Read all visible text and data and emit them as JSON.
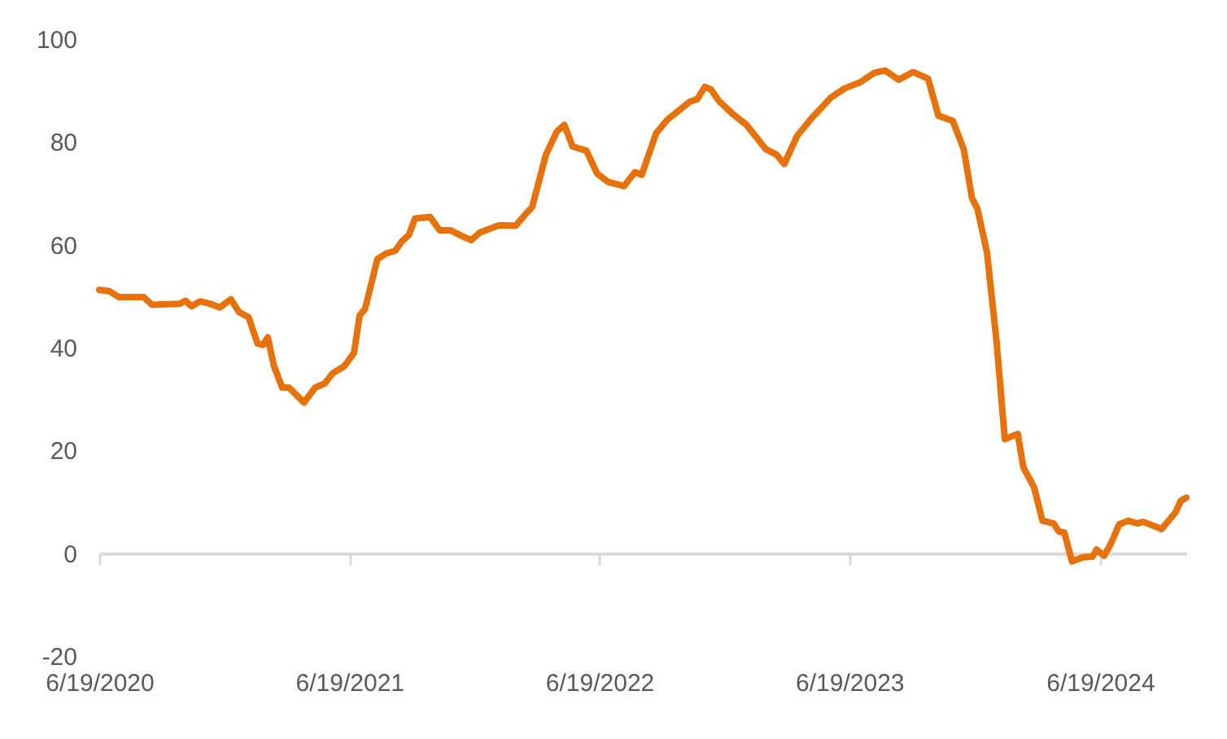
{
  "chart_data": {
    "type": "line",
    "x": [
      "2020-06-19",
      "2020-07-03",
      "2020-07-18",
      "2020-08-23",
      "2020-09-04",
      "2020-10-14",
      "2020-10-23",
      "2020-11-01",
      "2020-11-13",
      "2020-11-28",
      "2020-12-12",
      "2020-12-28",
      "2021-01-09",
      "2021-01-23",
      "2021-02-05",
      "2021-02-13",
      "2021-02-20",
      "2021-03-01",
      "2021-03-13",
      "2021-03-23",
      "2021-04-14",
      "2021-04-30",
      "2021-05-14",
      "2021-05-26",
      "2021-06-12",
      "2021-06-26",
      "2021-07-04",
      "2021-07-12",
      "2021-07-30",
      "2021-08-12",
      "2021-08-25",
      "2021-09-04",
      "2021-09-14",
      "2021-09-23",
      "2021-10-15",
      "2021-10-29",
      "2021-11-14",
      "2021-11-30",
      "2021-12-14",
      "2021-12-27",
      "2022-01-24",
      "2022-02-17",
      "2022-03-05",
      "2022-03-13",
      "2022-04-02",
      "2022-04-18",
      "2022-04-29",
      "2022-05-11",
      "2022-05-31",
      "2022-06-16",
      "2022-07-02",
      "2022-07-25",
      "2022-08-10",
      "2022-08-20",
      "2022-09-10",
      "2022-09-27",
      "2022-10-29",
      "2022-11-09",
      "2022-11-20",
      "2022-11-29",
      "2022-12-11",
      "2022-12-31",
      "2023-01-20",
      "2023-02-17",
      "2023-03-05",
      "2023-03-16",
      "2023-04-04",
      "2023-04-25",
      "2023-05-23",
      "2023-06-12",
      "2023-07-05",
      "2023-07-25",
      "2023-08-10",
      "2023-08-30",
      "2023-09-20",
      "2023-10-12",
      "2023-10-27",
      "2023-11-17",
      "2023-12-03",
      "2023-12-15",
      "2023-12-23",
      "2024-01-06",
      "2024-01-20",
      "2024-02-01",
      "2024-02-20",
      "2024-02-28",
      "2024-03-15",
      "2024-03-27",
      "2024-04-12",
      "2024-04-20",
      "2024-04-28",
      "2024-05-09",
      "2024-05-25",
      "2024-06-08",
      "2024-06-14",
      "2024-06-25",
      "2024-07-04",
      "2024-07-17",
      "2024-07-30",
      "2024-08-13",
      "2024-08-21",
      "2024-09-17",
      "2024-10-07",
      "2024-10-15",
      "2024-10-23"
    ],
    "series": [
      {
        "color": "#e8710a",
        "values": [
          51.2,
          51.0,
          49.8,
          49.8,
          48.3,
          48.5,
          49.1,
          48.0,
          49.0,
          48.5,
          47.8,
          49.4,
          46.9,
          45.9,
          40.8,
          40.5,
          42.0,
          36.4,
          32.2,
          32.2,
          29.3,
          32.2,
          33.0,
          35.0,
          36.4,
          39.0,
          46.2,
          47.5,
          57.2,
          58.3,
          58.8,
          60.7,
          61.9,
          65.1,
          65.4,
          62.8,
          62.8,
          61.7,
          60.9,
          62.4,
          63.8,
          63.7,
          66.2,
          67.3,
          77.5,
          82.0,
          83.3,
          79.1,
          78.3,
          73.8,
          72.2,
          71.4,
          74.1,
          73.6,
          81.7,
          84.4,
          87.8,
          88.3,
          90.7,
          90.2,
          87.9,
          85.4,
          83.3,
          78.6,
          77.5,
          75.7,
          81.2,
          84.6,
          88.6,
          90.4,
          91.6,
          93.4,
          93.9,
          92.1,
          93.6,
          92.3,
          85.1,
          84.1,
          78.6,
          69.1,
          67.0,
          58.5,
          41.1,
          22.2,
          23.2,
          16.7,
          12.7,
          6.3,
          5.8,
          4.2,
          4.0,
          -1.6,
          -0.8,
          -0.7,
          0.7,
          -0.5,
          1.6,
          5.6,
          6.3,
          5.8,
          6.1,
          4.7,
          7.9,
          10.2,
          10.8
        ]
      }
    ],
    "xlim": [
      "2020-06-19",
      "2024-10-23"
    ],
    "xticks": [
      {
        "value": "2020-06-19",
        "label": "6/19/2020"
      },
      {
        "value": "2021-06-19",
        "label": "6/19/2021"
      },
      {
        "value": "2022-06-19",
        "label": "6/19/2022"
      },
      {
        "value": "2023-06-19",
        "label": "6/19/2023"
      },
      {
        "value": "2024-06-19",
        "label": "6/19/2024"
      }
    ],
    "ylim": [
      -20,
      100
    ],
    "yticks": [
      -20,
      0,
      20,
      40,
      60,
      80,
      100
    ],
    "line_style": "solid",
    "marker": "none"
  }
}
